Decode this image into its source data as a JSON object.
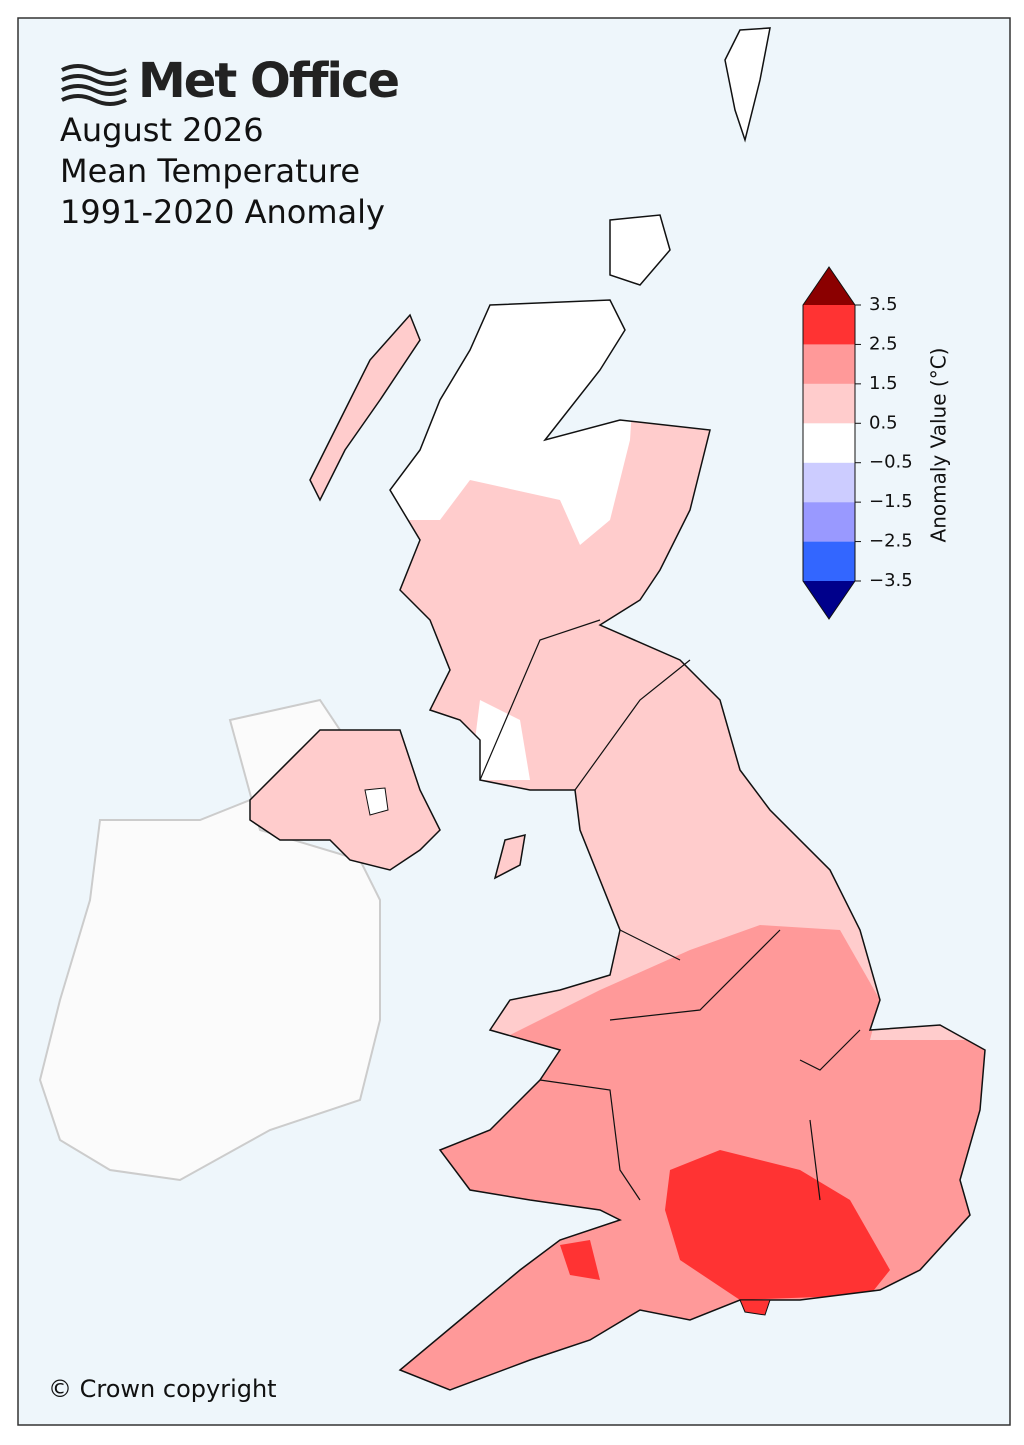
{
  "header": {
    "logo": "Met Office",
    "title_lines": [
      "August 2026",
      "Mean Temperature",
      "1991-2020 Anomaly"
    ]
  },
  "colorbar": {
    "label": "Anomaly Value (°C)",
    "lim": [
      -3.5,
      3.5
    ],
    "ticks": [
      3.5,
      2.5,
      1.5,
      0.5,
      {
        "value": -0.5,
        "label": "−0.5"
      },
      {
        "value": -1.5,
        "label": "−1.5"
      },
      {
        "value": -2.5,
        "label": "−2.5"
      },
      {
        "value": -3.5,
        "label": "−3.5"
      }
    ],
    "colors": [
      "#3366ff",
      "#9999ff",
      "#ccccff",
      "#ffffff",
      "#ffcccc",
      "#ff9999",
      "#ff3333"
    ],
    "extend_colors": [
      "#00008b",
      "#8b0000"
    ]
  },
  "copyright": "© Crown copyright"
}
